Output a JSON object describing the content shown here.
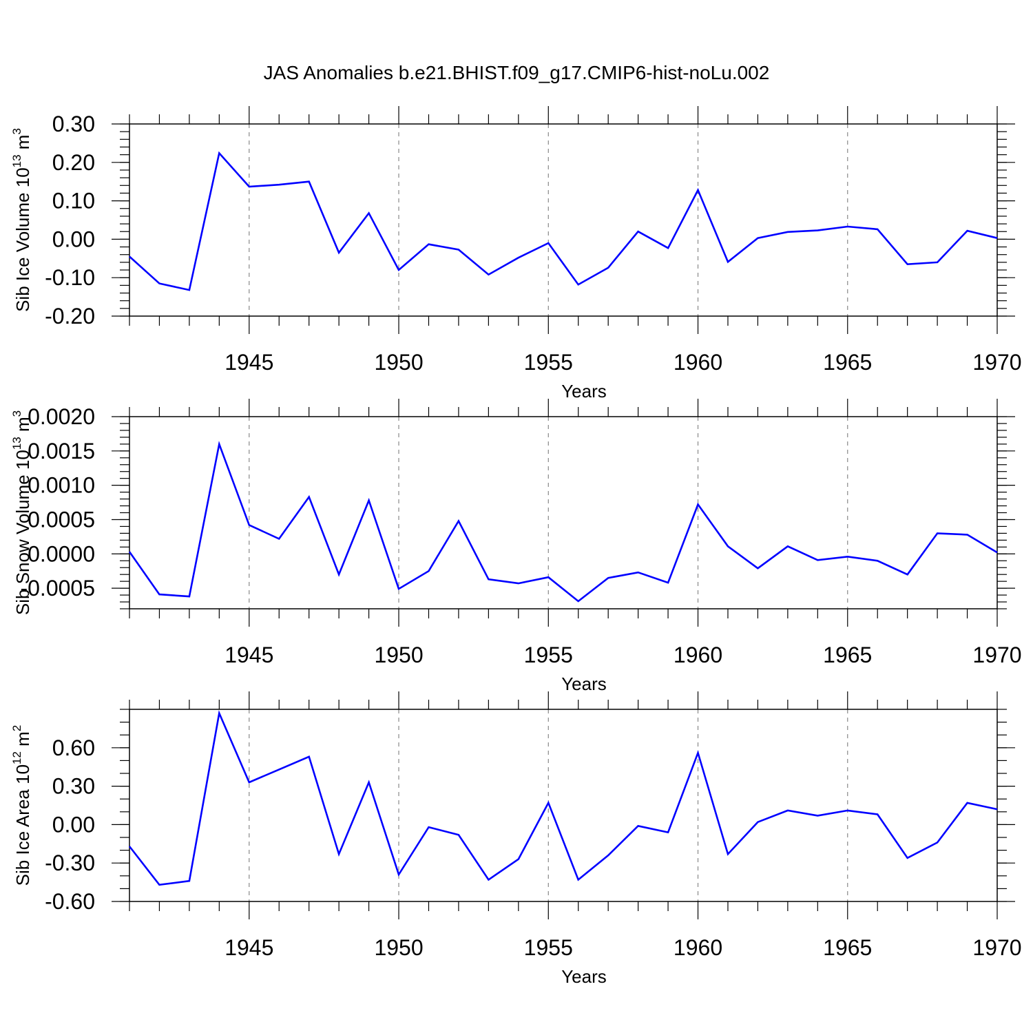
{
  "figure_title": "JAS Anomalies b.e21.BHIST.f09_g17.CMIP6-hist-noLu.002",
  "line_color": "#0000ff",
  "chart_data": [
    {
      "type": "line",
      "name": "sib-ice-volume",
      "title": "JAS Anomalies b.e21.BHIST.f09_g17.CMIP6-hist-noLu.002",
      "xlabel": "Years",
      "ylabel": "Sib Ice Volume 10¹³ m³",
      "ylabel_parts": {
        "base": "Sib Ice Volume 10",
        "exp1": "13",
        "unit": " m",
        "exp2": "3"
      },
      "xlim": [
        1941,
        1970
      ],
      "ylim": [
        -0.2,
        0.3
      ],
      "x_ticks": [
        1945,
        1950,
        1955,
        1960,
        1965,
        1970
      ],
      "x_tick_labels": [
        "1945",
        "1950",
        "1955",
        "1960",
        "1965",
        "1970"
      ],
      "y_ticks": [
        -0.2,
        -0.1,
        0.0,
        0.1,
        0.2,
        0.3
      ],
      "y_tick_labels": [
        "-0.20",
        "-0.10",
        "0.00",
        "0.10",
        "0.20",
        "0.30"
      ],
      "y_minor_step": 0.02,
      "grid": "vertical dashed at major x ticks",
      "x": [
        1941,
        1942,
        1943,
        1944,
        1945,
        1946,
        1947,
        1948,
        1949,
        1950,
        1951,
        1952,
        1953,
        1954,
        1955,
        1956,
        1957,
        1958,
        1959,
        1960,
        1961,
        1962,
        1963,
        1964,
        1965,
        1966,
        1967,
        1968,
        1969,
        1970
      ],
      "values": [
        -0.045,
        -0.115,
        -0.132,
        0.224,
        0.137,
        0.142,
        0.15,
        -0.035,
        0.068,
        -0.08,
        -0.013,
        -0.027,
        -0.092,
        -0.048,
        -0.01,
        -0.118,
        -0.074,
        0.02,
        -0.023,
        0.128,
        -0.059,
        0.003,
        0.019,
        0.023,
        0.033,
        0.026,
        -0.065,
        -0.06,
        0.022,
        0.003
      ]
    },
    {
      "type": "line",
      "name": "sib-snow-volume",
      "xlabel": "Years",
      "ylabel": "Sib Snow Volume 10¹³ m³",
      "ylabel_parts": {
        "base": "Sib Snow Volume 10",
        "exp1": "13",
        "unit": " m",
        "exp2": "3"
      },
      "xlim": [
        1941,
        1970
      ],
      "ylim": [
        -0.0008,
        0.002
      ],
      "x_ticks": [
        1945,
        1950,
        1955,
        1960,
        1965,
        1970
      ],
      "x_tick_labels": [
        "1945",
        "1950",
        "1955",
        "1960",
        "1965",
        "1970"
      ],
      "y_ticks": [
        -0.0005,
        0.0,
        0.0005,
        0.001,
        0.0015,
        0.002
      ],
      "y_tick_labels": [
        "-0.0005",
        "0.0000",
        "0.0005",
        "0.0010",
        "0.0015",
        "0.0020"
      ],
      "y_minor_step": 0.0001,
      "grid": "vertical dashed at major x ticks",
      "x": [
        1941,
        1942,
        1943,
        1944,
        1945,
        1946,
        1947,
        1948,
        1949,
        1950,
        1951,
        1952,
        1953,
        1954,
        1955,
        1956,
        1957,
        1958,
        1959,
        1960,
        1961,
        1962,
        1963,
        1964,
        1965,
        1966,
        1967,
        1968,
        1969,
        1970
      ],
      "values": [
        3e-05,
        -0.00059,
        -0.00062,
        0.0016,
        0.00042,
        0.00022,
        0.00083,
        -0.0003,
        0.00078,
        -0.00051,
        -0.00025,
        0.00048,
        -0.00037,
        -0.00043,
        -0.00034,
        -0.00069,
        -0.00035,
        -0.00027,
        -0.00042,
        0.00072,
        0.00011,
        -0.00021,
        0.00011,
        -9e-05,
        -4e-05,
        -0.0001,
        -0.0003,
        0.0003,
        0.00028,
        2e-05
      ]
    },
    {
      "type": "line",
      "name": "sib-ice-area",
      "xlabel": "Years",
      "ylabel": "Sib Ice Area 10¹² m²",
      "ylabel_parts": {
        "base": "Sib Ice Area 10",
        "exp1": "12",
        "unit": " m",
        "exp2": "2"
      },
      "xlim": [
        1941,
        1970
      ],
      "ylim": [
        -0.6,
        0.9
      ],
      "x_ticks": [
        1945,
        1950,
        1955,
        1960,
        1965,
        1970
      ],
      "x_tick_labels": [
        "1945",
        "1950",
        "1955",
        "1960",
        "1965",
        "1970"
      ],
      "y_ticks": [
        -0.6,
        -0.3,
        0.0,
        0.3,
        0.6
      ],
      "y_tick_labels": [
        "-0.60",
        "-0.30",
        "0.00",
        "0.30",
        "0.60"
      ],
      "y_minor_step": 0.1,
      "grid": "vertical dashed at major x ticks",
      "x": [
        1941,
        1942,
        1943,
        1944,
        1945,
        1946,
        1947,
        1948,
        1949,
        1950,
        1951,
        1952,
        1953,
        1954,
        1955,
        1956,
        1957,
        1958,
        1959,
        1960,
        1961,
        1962,
        1963,
        1964,
        1965,
        1966,
        1967,
        1968,
        1969,
        1970
      ],
      "values": [
        -0.17,
        -0.47,
        -0.44,
        0.87,
        0.33,
        0.43,
        0.53,
        -0.23,
        0.33,
        -0.39,
        -0.02,
        -0.08,
        -0.43,
        -0.27,
        0.17,
        -0.43,
        -0.24,
        -0.01,
        -0.06,
        0.56,
        -0.23,
        0.02,
        0.11,
        0.07,
        0.11,
        0.08,
        -0.26,
        -0.14,
        0.17,
        0.12
      ]
    }
  ]
}
